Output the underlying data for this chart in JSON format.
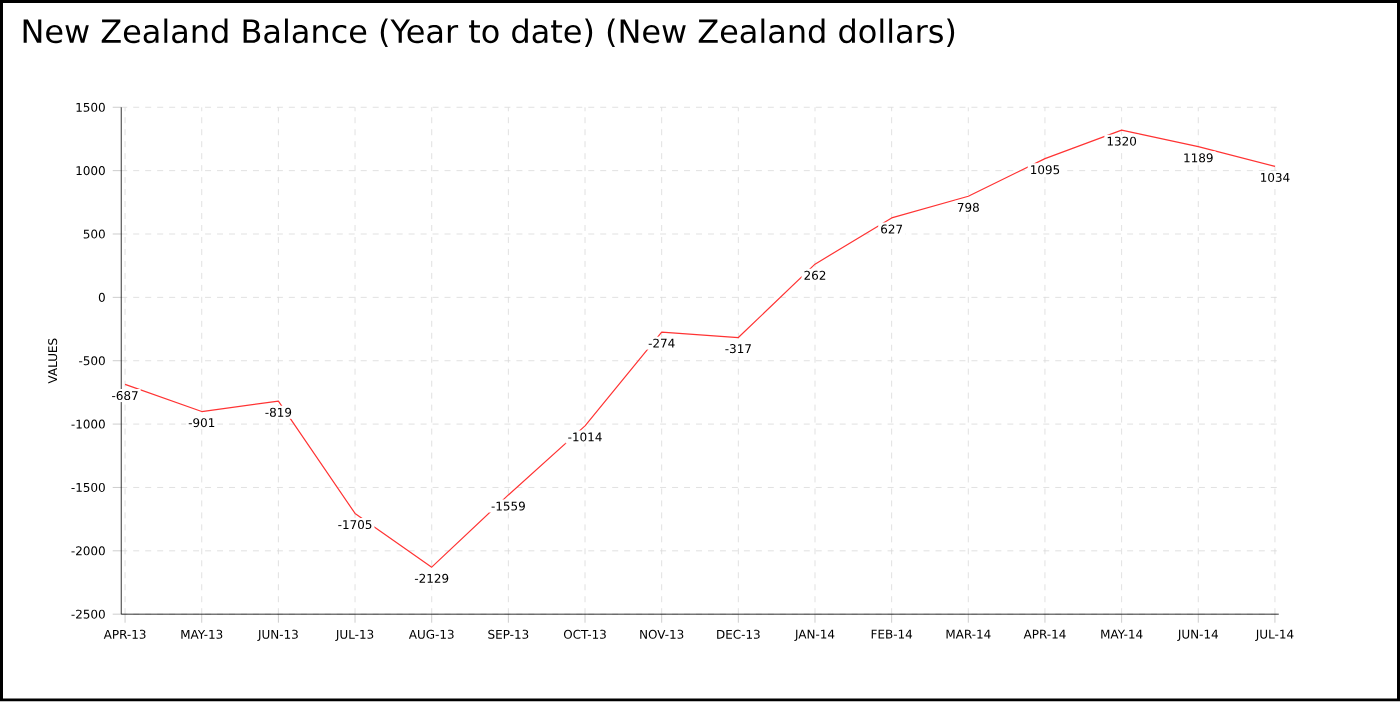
{
  "chart_data": {
    "type": "line",
    "title": "New Zealand Balance (Year to date) (New Zealand dollars)",
    "ylabel": "VALUES",
    "categories": [
      "APR-13",
      "MAY-13",
      "JUN-13",
      "JUL-13",
      "AUG-13",
      "SEP-13",
      "OCT-13",
      "NOV-13",
      "DEC-13",
      "JAN-14",
      "FEB-14",
      "MAR-14",
      "APR-14",
      "MAY-14",
      "JUN-14",
      "JUL-14"
    ],
    "values": [
      -687,
      -901,
      -819,
      -1705,
      -2129,
      -1559,
      -1014,
      -274,
      -317,
      262,
      627,
      798,
      1095,
      1320,
      1189,
      1034
    ],
    "color": "#ff3333",
    "ylim": [
      -2500,
      1500
    ],
    "yticks": [
      -2500,
      -2000,
      -1500,
      -1000,
      -500,
      0,
      500,
      1000,
      1500
    ],
    "grid": true,
    "data_labels": true,
    "marker": "none",
    "line_style": "solid"
  }
}
